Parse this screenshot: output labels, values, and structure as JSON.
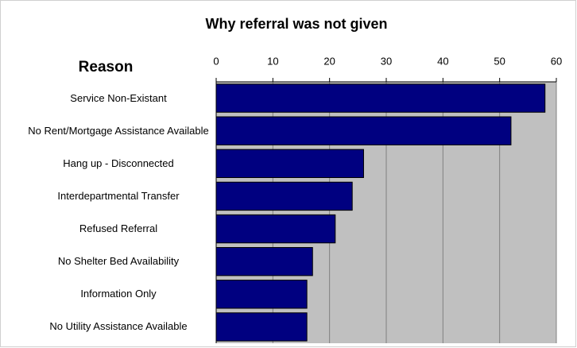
{
  "chart_data": {
    "type": "barh",
    "title": "Why referral was not given",
    "category_axis_label": "Reason",
    "categories": [
      "Service Non-Existant",
      "No Rent/Mortgage Assistance Available",
      "Hang up - Disconnected",
      "Interdepartmental Transfer",
      "Refused Referral",
      "No Shelter Bed Availability",
      "Information Only",
      "No Utility Assistance Available"
    ],
    "values": [
      58,
      52,
      26,
      24,
      21,
      17,
      16,
      16
    ],
    "color": "#000080",
    "xlim": [
      0,
      60
    ],
    "xticks": [
      0,
      10,
      20,
      30,
      40,
      50,
      60
    ],
    "grid": true
  }
}
